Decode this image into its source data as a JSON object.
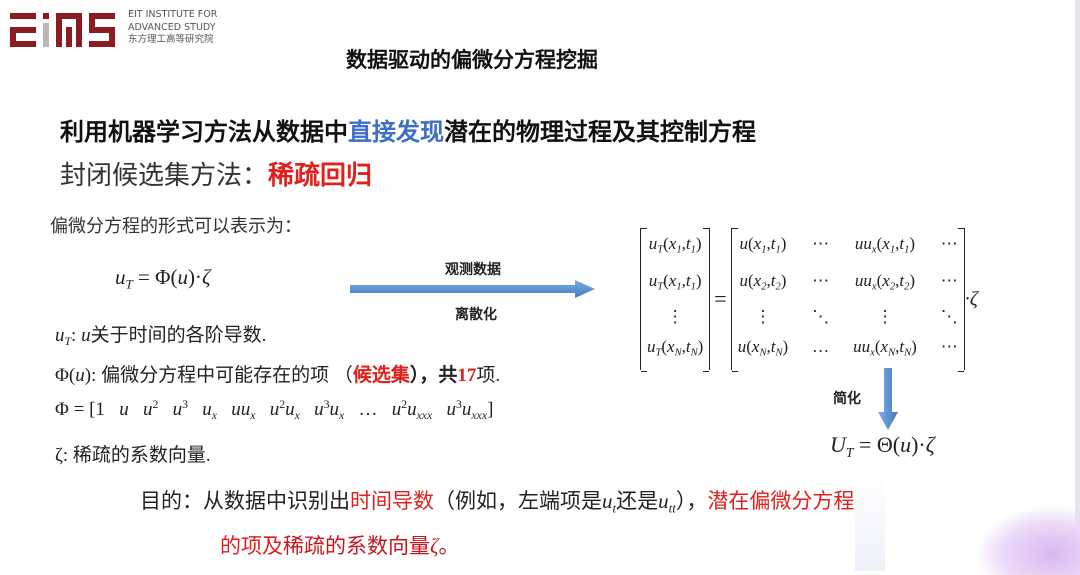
{
  "logo": {
    "line1": "EIT INSTITUTE FOR",
    "line2": "ADVANCED STUDY",
    "line3": "东方理工高等研究院",
    "mark": "EIAS",
    "color": "#8a1c22"
  },
  "title": "数据驱动的偏微分方程挖掘",
  "line1": {
    "pre": "利用机器学习方法从数据中",
    "hl": "直接发现",
    "post": "潜在的物理过程及其控制方程",
    "hl_color": "#3c6fc8"
  },
  "line2": {
    "pre": "封闭候选集方法：",
    "hl": "稀疏回归",
    "hl_color": "#e0201c"
  },
  "form_intro": "偏微分方程的形式可以表示为：",
  "eq1": [
    {
      "t": "u",
      "i": 1,
      "sub": "T"
    },
    " = Φ(",
    {
      "t": "u",
      "i": 1
    },
    ")·",
    {
      "t": "ζ",
      "i": 1
    }
  ],
  "arrow": {
    "above": "观测数据",
    "below": "离散化",
    "color": "#4a86c8"
  },
  "defs": {
    "d1": {
      "math": [
        {
          "t": "u",
          "i": 1,
          "sub": "T"
        },
        ": ",
        {
          "t": "u",
          "i": 1
        }
      ],
      "text": "关于时间的各阶导数."
    },
    "d2": {
      "math": [
        "Φ(",
        {
          "t": "u",
          "i": 1
        },
        "): "
      ],
      "pre": "偏微分方程中可能存在的项 （",
      "hl": "候选集",
      "mid": "），共",
      "num": "17",
      "post": "项."
    },
    "d3": [
      "Φ = [1   ",
      {
        "t": "u",
        "i": 1
      },
      "   ",
      {
        "t": "u",
        "i": 1,
        "sup": "2"
      },
      "   ",
      {
        "t": "u",
        "i": 1,
        "sup": "3"
      },
      "   ",
      {
        "t": "u",
        "i": 1,
        "sub": "x"
      },
      "   ",
      {
        "t": "uu",
        "i": 1,
        "sub": "x"
      },
      "   ",
      {
        "t": "u",
        "i": 1,
        "sup": "2"
      },
      {
        "t": "u",
        "i": 1,
        "sub": "x"
      },
      "   ",
      {
        "t": "u",
        "i": 1,
        "sup": "3"
      },
      {
        "t": "u",
        "i": 1,
        "sub": "x"
      },
      "   …   ",
      {
        "t": "u",
        "i": 1,
        "sup": "2"
      },
      {
        "t": "u",
        "i": 1,
        "sub": "xxx"
      },
      "   ",
      {
        "t": "u",
        "i": 1,
        "sup": "3"
      },
      {
        "t": "u",
        "i": 1,
        "sub": "xxx"
      },
      "]"
    ],
    "d4": {
      "math": [
        "ζ: "
      ],
      "text": "稀疏的系数向量."
    }
  },
  "matrix": {
    "lhs": [
      [
        {
          "t": "u",
          "i": 1,
          "sub": "T"
        },
        "(",
        {
          "t": "x",
          "i": 1,
          "sub": "1"
        },
        ",",
        {
          "t": "t",
          "i": 1,
          "sub": "1"
        },
        ")"
      ],
      [
        {
          "t": "u",
          "i": 1,
          "sub": "T"
        },
        "(",
        {
          "t": "x",
          "i": 1,
          "sub": "1"
        },
        ",",
        {
          "t": "t",
          "i": 1,
          "sub": "1"
        },
        ")"
      ],
      [
        "⋮"
      ],
      [
        {
          "t": "u",
          "i": 1,
          "sub": "T"
        },
        "(",
        {
          "t": "x",
          "i": 1,
          "sub": "N"
        },
        ",",
        {
          "t": "t",
          "i": 1,
          "sub": "N"
        },
        ")"
      ]
    ],
    "rhs": [
      [
        [
          {
            "t": "u",
            "i": 1
          },
          "(",
          {
            "t": "x",
            "i": 1,
            "sub": "1"
          },
          ",",
          {
            "t": "t",
            "i": 1,
            "sub": "1"
          },
          ")"
        ],
        [
          "⋯"
        ],
        [
          {
            "t": "uu",
            "i": 1,
            "sub": "x"
          },
          "(",
          {
            "t": "x",
            "i": 1,
            "sub": "1"
          },
          ",",
          {
            "t": "t",
            "i": 1,
            "sub": "1"
          },
          ")"
        ],
        [
          "⋯"
        ]
      ],
      [
        [
          {
            "t": "u",
            "i": 1
          },
          "(",
          {
            "t": "x",
            "i": 1,
            "sub": "2"
          },
          ",",
          {
            "t": "t",
            "i": 1,
            "sub": "2"
          },
          ")"
        ],
        [
          "⋯"
        ],
        [
          {
            "t": "uu",
            "i": 1,
            "sub": "x"
          },
          "(",
          {
            "t": "x",
            "i": 1,
            "sub": "2"
          },
          ",",
          {
            "t": "t",
            "i": 1,
            "sub": "2"
          },
          ")"
        ],
        [
          "⋯"
        ]
      ],
      [
        [
          "⋮"
        ],
        [
          "⋱"
        ],
        [
          "⋮"
        ],
        [
          "⋱"
        ]
      ],
      [
        [
          {
            "t": "u",
            "i": 1
          },
          "(",
          {
            "t": "x",
            "i": 1,
            "sub": "N"
          },
          ",",
          {
            "t": "t",
            "i": 1,
            "sub": "N"
          },
          ")"
        ],
        [
          "…"
        ],
        [
          {
            "t": "uu",
            "i": 1,
            "sub": "x"
          },
          "(",
          {
            "t": "x",
            "i": 1,
            "sub": "N"
          },
          ",",
          {
            "t": "t",
            "i": 1,
            "sub": "N"
          },
          ")"
        ],
        [
          "⋯"
        ]
      ]
    ],
    "eq": "=",
    "tail": "·ζ"
  },
  "simplify": {
    "label": "简化"
  },
  "eq2": [
    {
      "t": "U",
      "i": 1,
      "sub": "T"
    },
    " = Θ(",
    {
      "t": "u",
      "i": 1
    },
    ")·",
    {
      "t": "ζ",
      "i": 1
    }
  ],
  "purpose": {
    "p1a": "目的：从数据中识别出",
    "p1b": "时间导数",
    "p1c": "（例如，左端项是",
    "m1": [
      {
        "t": "u",
        "i": 1,
        "sub": "t"
      }
    ],
    "p1d": "还是",
    "m2": [
      {
        "t": "u",
        "i": 1,
        "sub": "tt"
      }
    ],
    "p1e": "），",
    "p1f": "潜在偏微分方程",
    "p2a": "的项及",
    "p2b": "稀疏的系数向量",
    "m3": [
      {
        "t": "ζ",
        "i": 1
      }
    ],
    "p2c": "。"
  }
}
